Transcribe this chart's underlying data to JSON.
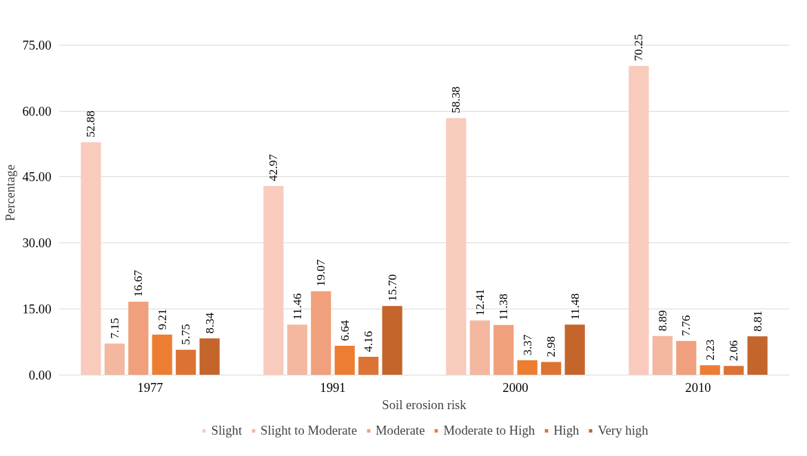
{
  "chart_data": {
    "type": "bar",
    "xlabel": "Soil erosion risk",
    "ylabel": "Percentage",
    "categories": [
      "1977",
      "1991",
      "2000",
      "2010"
    ],
    "ylim": [
      0,
      75
    ],
    "yticks": [
      {
        "value": 0,
        "label": "0.00"
      },
      {
        "value": 15,
        "label": "15.00"
      },
      {
        "value": 30,
        "label": "30.00"
      },
      {
        "value": 45,
        "label": "45.00"
      },
      {
        "value": 60,
        "label": "60.00"
      },
      {
        "value": 75,
        "label": "75.00"
      }
    ],
    "grid": "y",
    "legend": "bottom",
    "series": [
      {
        "name": "Slight",
        "color": "#f8cbbd",
        "values": [
          52.88,
          42.97,
          58.38,
          70.25
        ],
        "value_labels": [
          "52.88",
          "42.97",
          "58.38",
          "70.25"
        ]
      },
      {
        "name": "Slight to Moderate",
        "color": "#f4b7a0",
        "values": [
          7.15,
          11.46,
          12.41,
          8.89
        ],
        "value_labels": [
          "7.15",
          "11.46",
          "12.41",
          "8.89"
        ]
      },
      {
        "name": "Moderate",
        "color": "#f0a07c",
        "values": [
          16.67,
          19.07,
          11.38,
          7.76
        ],
        "value_labels": [
          "16.67",
          "19.07",
          "11.38",
          "7.76"
        ]
      },
      {
        "name": "Moderate to High",
        "color": "#ed7d31",
        "values": [
          9.21,
          6.64,
          3.37,
          2.23
        ],
        "value_labels": [
          "9.21",
          "6.64",
          "3.37",
          "2.23"
        ]
      },
      {
        "name": "High",
        "color": "#dc7332",
        "values": [
          5.75,
          4.16,
          2.98,
          2.06
        ],
        "value_labels": [
          "5.75",
          "4.16",
          "2.98",
          "2.06"
        ]
      },
      {
        "name": "Very high",
        "color": "#c4652b",
        "values": [
          8.34,
          15.7,
          11.48,
          8.81
        ],
        "value_labels": [
          "8.34",
          "15.70",
          "11.48",
          "8.81"
        ]
      }
    ]
  }
}
